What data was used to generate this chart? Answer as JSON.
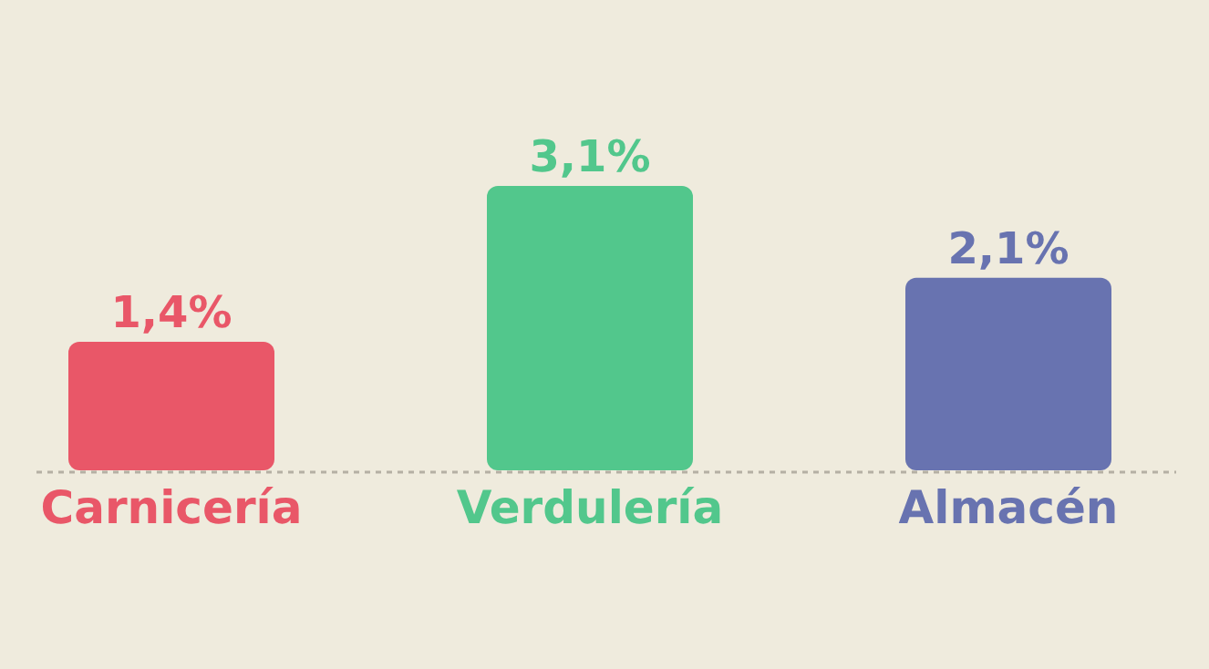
{
  "chart_data": {
    "type": "bar",
    "categories": [
      "Carnicería",
      "Verdulería",
      "Almacén"
    ],
    "values": [
      1.4,
      3.1,
      2.1
    ],
    "value_labels": [
      "1,4%",
      "3,1%",
      "2,1%"
    ],
    "colors": [
      "#e95768",
      "#52c78c",
      "#6873b0"
    ]
  }
}
